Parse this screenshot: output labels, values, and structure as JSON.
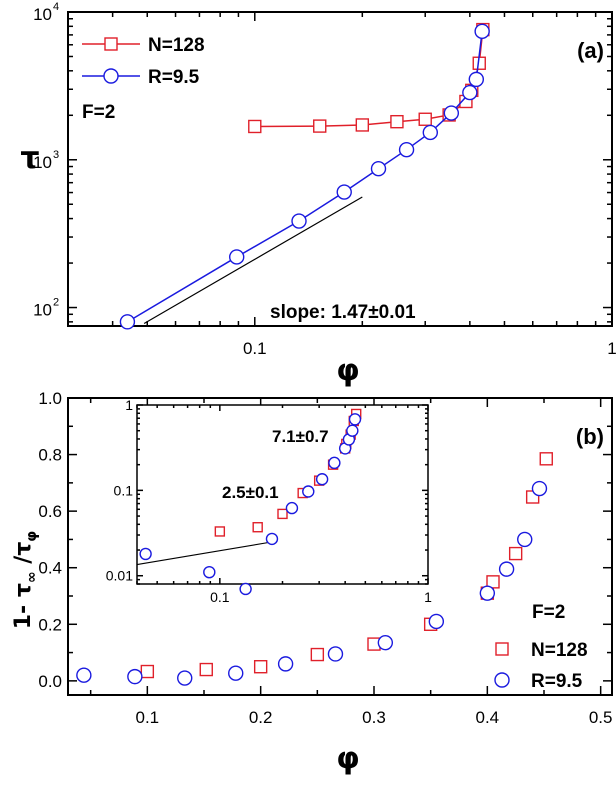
{
  "colors": {
    "red": "#e0202a",
    "blue": "#1a1adf",
    "black": "#000000"
  },
  "chart_data": [
    {
      "id": "a",
      "type": "line",
      "panel_label": "(a)",
      "xlabel": "φ",
      "ylabel": "τ",
      "xscale": "log",
      "yscale": "log",
      "xlim": [
        0.03,
        1
      ],
      "ylim": [
        75,
        10000
      ],
      "x_tick_labels": [
        {
          "v": 0.1,
          "label": "0.1"
        },
        {
          "v": 1,
          "label": "1"
        }
      ],
      "y_tick_labels": [
        {
          "v": 100,
          "base": "10",
          "exp": "2"
        },
        {
          "v": 1000,
          "base": "10",
          "exp": "3"
        },
        {
          "v": 10000,
          "base": "10",
          "exp": "4"
        }
      ],
      "annotations": {
        "f": "F=2",
        "slope": "slope: 1.47±0.01"
      },
      "legend_position": "top-left",
      "series": [
        {
          "name": "N=128",
          "color": "red",
          "marker": "square",
          "x": [
            0.1,
            0.152,
            0.2,
            0.25,
            0.3,
            0.35,
            0.39,
            0.405,
            0.425,
            0.435
          ],
          "y": [
            1680,
            1690,
            1720,
            1810,
            1880,
            2010,
            2480,
            2950,
            4500,
            7600
          ]
        },
        {
          "name": "R=9.5",
          "color": "blue",
          "marker": "circle",
          "x": [
            0.044,
            0.089,
            0.133,
            0.178,
            0.222,
            0.266,
            0.31,
            0.355,
            0.4,
            0.417,
            0.433
          ],
          "y": [
            80,
            220,
            385,
            605,
            870,
            1170,
            1530,
            2070,
            2850,
            3500,
            7400
          ]
        }
      ],
      "fit_line": {
        "x": [
          0.049,
          0.2
        ],
        "y": [
          78,
          560
        ]
      }
    },
    {
      "id": "b",
      "type": "scatter",
      "panel_label": "(b)",
      "xlabel": "φ",
      "ylabel_main": "1- τ",
      "ylabel_sub1": "∞",
      "ylabel_mid": " /τ",
      "ylabel_sub2": "φ",
      "xlim": [
        0.03,
        0.51
      ],
      "ylim": [
        -0.05,
        1.0
      ],
      "x_tick_labels": [
        "0.1",
        "0.2",
        "0.3",
        "0.4",
        "0.5"
      ],
      "x_ticks": [
        0.1,
        0.2,
        0.3,
        0.4,
        0.5
      ],
      "y_tick_labels": [
        "0.0",
        "0.2",
        "0.4",
        "0.6",
        "0.8",
        "1.0"
      ],
      "y_ticks": [
        0,
        0.2,
        0.4,
        0.6,
        0.8,
        1.0
      ],
      "annotations": {
        "f": "F=2"
      },
      "legend_position": "bottom-right",
      "series": [
        {
          "name": "N=128",
          "color": "red",
          "marker": "square",
          "x": [
            0.1,
            0.152,
            0.2,
            0.25,
            0.3,
            0.35,
            0.4,
            0.405,
            0.425,
            0.44,
            0.452
          ],
          "y": [
            0.033,
            0.04,
            0.05,
            0.093,
            0.13,
            0.2,
            0.31,
            0.35,
            0.45,
            0.65,
            0.785
          ]
        },
        {
          "name": "R=9.5",
          "color": "blue",
          "marker": "circle",
          "x": [
            0.044,
            0.089,
            0.133,
            0.178,
            0.222,
            0.266,
            0.31,
            0.355,
            0.4,
            0.417,
            0.433,
            0.446
          ],
          "y": [
            0.02,
            0.015,
            0.01,
            0.027,
            0.06,
            0.095,
            0.135,
            0.21,
            0.31,
            0.395,
            0.5,
            0.68
          ]
        }
      ]
    },
    {
      "id": "b-inset",
      "type": "scatter",
      "xscale": "log",
      "yscale": "log",
      "xlim": [
        0.04,
        1
      ],
      "ylim": [
        0.008,
        1
      ],
      "x_tick_labels": [
        {
          "v": 0.1,
          "label": "0.1"
        },
        {
          "v": 1,
          "label": "1"
        }
      ],
      "y_tick_labels": [
        {
          "v": 0.01,
          "label": "0.01"
        },
        {
          "v": 0.1,
          "label": "0.1"
        },
        {
          "v": 1,
          "label": "1"
        }
      ],
      "annotations": {
        "slope_high": "7.1±0.7",
        "slope_low": "2.5±0.1"
      },
      "series": [
        {
          "name": "N=128",
          "color": "red",
          "marker": "square",
          "x": [
            0.1,
            0.152,
            0.2,
            0.25,
            0.3,
            0.35,
            0.4,
            0.405,
            0.425,
            0.44,
            0.452
          ],
          "y": [
            0.033,
            0.037,
            0.053,
            0.093,
            0.13,
            0.2,
            0.31,
            0.35,
            0.45,
            0.65,
            0.785
          ]
        },
        {
          "name": "R=9.5",
          "color": "blue",
          "marker": "circle",
          "x": [
            0.044,
            0.089,
            0.133,
            0.178,
            0.222,
            0.266,
            0.31,
            0.355,
            0.4,
            0.417,
            0.433,
            0.446
          ],
          "y": [
            0.018,
            0.011,
            0.007,
            0.027,
            0.062,
            0.097,
            0.135,
            0.21,
            0.31,
            0.395,
            0.5,
            0.68
          ]
        }
      ],
      "fit_lines": [
        {
          "x": [
            0.04,
            0.18
          ],
          "y": [
            0.0135,
            0.025
          ]
        }
      ]
    }
  ]
}
